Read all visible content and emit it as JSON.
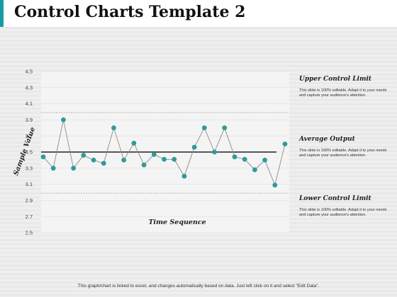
{
  "slide": {
    "title": "Control Charts Template 2",
    "footer": "This graph/chart is linked to excel, and changes automatically based on data. Just left click on it and select “Edit Data”."
  },
  "legend_panel": [
    {
      "heading": "Upper Control Limit",
      "text": "This slide is 100% editable. Adapt it to your needs and capture your audience's attention."
    },
    {
      "heading": "Average Output",
      "text": "This slide is 100% editable. Adapt it to your needs and capture your audience's attention."
    },
    {
      "heading": "Lower Control Limit",
      "text": "This slide is 100% editable. Adapt it to your needs and capture your audience's attention."
    }
  ],
  "colors": {
    "accent": "#1a9ba1",
    "marker": "#2e9a9a",
    "series_line": "#8c8c8c",
    "average_line": "#222222",
    "limit_line": "#9a9a9a"
  },
  "chart_data": {
    "type": "line",
    "xlabel": "Time Sequence",
    "ylabel": "Sample Value",
    "ylim": [
      2.5,
      4.5
    ],
    "yticks": [
      "4.5",
      "4.3",
      "4.1",
      "3.9",
      "3.7",
      "3.5",
      "3.3",
      "3.1",
      "2.9",
      "2.7",
      "2.5"
    ],
    "grid": true,
    "values": [
      3.44,
      3.3,
      3.9,
      3.3,
      3.46,
      3.4,
      3.36,
      3.8,
      3.4,
      3.61,
      3.34,
      3.47,
      3.41,
      3.41,
      3.2,
      3.56,
      3.8,
      3.5,
      3.8,
      3.44,
      3.41,
      3.28,
      3.4,
      3.09,
      3.6
    ],
    "average": 3.5,
    "upper_control_limit": 3.99,
    "lower_control_limit": 2.99
  }
}
